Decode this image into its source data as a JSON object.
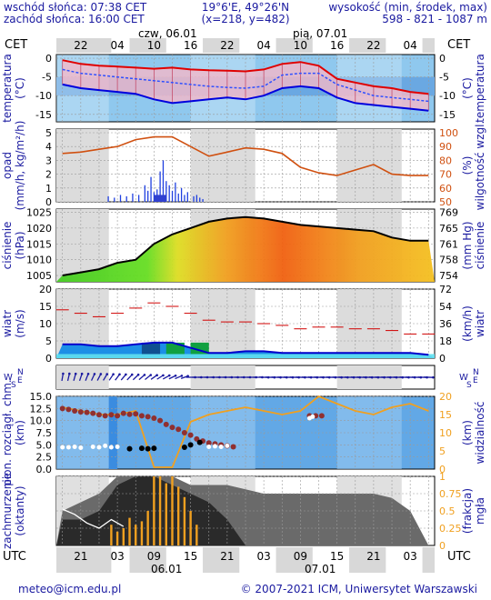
{
  "header": {
    "sunrise": "wschód słońca: 07:38 CET",
    "sunset": "zachód słońca: 16:00 CET",
    "coords": "19°6'E, 49°26'N",
    "grid": "(x=218,  y=482)",
    "altitude_label": "wysokość (min, środek, max)",
    "altitude_values": "598 - 821 - 1087 m"
  },
  "time_axis": {
    "tz_left": "CET",
    "tz_right": "CET",
    "day1": "czw, 06.01",
    "day2": "pią, 07.01",
    "top_hours": [
      "22",
      "04",
      "10",
      "16",
      "22",
      "04",
      "10",
      "16",
      "22",
      "04"
    ],
    "bottom_tz_left": "UTC",
    "bottom_tz_right": "UTC",
    "bottom_hours": [
      "21",
      "03",
      "09",
      "15",
      "21",
      "03",
      "09",
      "15",
      "21",
      "03"
    ],
    "bottom_day1": "06.01",
    "bottom_day2": "07.01"
  },
  "panels": {
    "temperature": {
      "left": "temperatura",
      "left2": "(°C)",
      "right": "(°C)",
      "right2": "temperatura",
      "ticks_left": [
        "0",
        "-5",
        "-10",
        "-15"
      ],
      "ticks_right": [
        "0",
        "-5",
        "-10",
        "-15"
      ]
    },
    "precip": {
      "left": "opad",
      "left2": "(mm/h, kg/m²/h)",
      "right": "(%)",
      "right2": "wilgotność wzgl.",
      "ticks_left": [
        "5",
        "4",
        "3",
        "2",
        "1",
        "0"
      ],
      "ticks_right": [
        "100",
        "90",
        "80",
        "70",
        "60",
        "50"
      ]
    },
    "pressure": {
      "left": "ciśnienie",
      "left2": "(hPa)",
      "right": "(mm Hg)",
      "right2": "ciśnienie",
      "ticks_left": [
        "1025",
        "1020",
        "1015",
        "1010",
        "1005"
      ],
      "ticks_right": [
        "769",
        "765",
        "761",
        "758",
        "754"
      ]
    },
    "wind": {
      "left": "wiatr",
      "left2": "(m/s)",
      "right": "(km/h)",
      "right2": "wiatr",
      "ticks_left": [
        "20",
        "15",
        "10",
        "5",
        "0"
      ],
      "ticks_right": [
        "72",
        "54",
        "36",
        "18",
        "0"
      ]
    },
    "winddir": {
      "left_letters": [
        "N",
        "W",
        "E",
        "S"
      ],
      "right_letters": [
        "N",
        "W",
        "E",
        "S"
      ]
    },
    "visibility": {
      "left": "pion. rozciągł. chm.",
      "left2": "(km)",
      "right": "(km)",
      "right2": "widzialność",
      "ticks_left": [
        "15.0",
        "12.5",
        "10.0",
        "7.5",
        "5.0",
        "2.5",
        "0.0"
      ],
      "ticks_right": [
        "20",
        "15",
        "10",
        "5",
        "0"
      ]
    },
    "clouds": {
      "left": "zachmurzenie",
      "left2": "(oktanty)",
      "right": "(frakcja)",
      "right2": "mgła",
      "ticks_right": [
        "1",
        "0.75",
        "0.5",
        "0.25",
        "0"
      ]
    }
  },
  "footer": {
    "email": "meteo@icm.edu.pl",
    "copyright": "© 2007-2021 ICM, Uniwersytet Warszawski"
  },
  "colors": {
    "temp_max": "#e00000",
    "temp_min": "#0000dd",
    "humidity": "#d05010",
    "precip": "#2040e0",
    "wind_max": "#d00000",
    "wind_avg": "#0000cc",
    "visibility": "#f0a020",
    "cloud_base": "#903030"
  },
  "chart_data": [
    {
      "type": "line",
      "panel": "temperature",
      "x_hours_cet": [
        19,
        22,
        25,
        28,
        31,
        34,
        37,
        40,
        43,
        46,
        49,
        52,
        55,
        58,
        61,
        64,
        67,
        70,
        73,
        76,
        79
      ],
      "series": [
        {
          "name": "max",
          "values": [
            -0.5,
            -1.5,
            -2.0,
            -2.2,
            -2.5,
            -2.8,
            -2.5,
            -3.0,
            -3.2,
            -3.3,
            -3.5,
            -3.0,
            -1.5,
            -1.0,
            -2.0,
            -5.5,
            -6.5,
            -7.5,
            -8.0,
            -9.0,
            -9.5
          ]
        },
        {
          "name": "mid",
          "values": [
            -3.0,
            -4.0,
            -4.5,
            -5.0,
            -5.5,
            -6.0,
            -6.5,
            -7.0,
            -7.5,
            -7.8,
            -8.0,
            -7.5,
            -4.5,
            -4.0,
            -4.0,
            -7.0,
            -8.5,
            -10.0,
            -10.5,
            -11.0,
            -11.5
          ]
        },
        {
          "name": "min",
          "values": [
            -7.0,
            -8.0,
            -8.5,
            -9.0,
            -9.5,
            -11.0,
            -12.0,
            -11.5,
            -11.0,
            -10.5,
            -11.0,
            -10.0,
            -8.0,
            -7.5,
            -8.0,
            -10.5,
            -12.0,
            -12.5,
            -13.0,
            -13.5,
            -14.0
          ]
        }
      ],
      "ylim": [
        -17,
        1
      ]
    },
    {
      "type": "line",
      "panel": "precip_humidity",
      "series": [
        {
          "name": "humidity",
          "x": [
            19,
            22,
            25,
            28,
            31,
            34,
            37,
            40,
            43,
            46,
            49,
            52,
            55,
            58,
            61,
            64,
            67,
            70,
            73,
            76,
            79
          ],
          "values": [
            85,
            86,
            88,
            90,
            95,
            97,
            97,
            90,
            83,
            86,
            89,
            88,
            85,
            75,
            71,
            69,
            73,
            77,
            70,
            69,
            69
          ]
        }
      ],
      "ylim_humidity": [
        50,
        100
      ],
      "ylim_precip": [
        0,
        5
      ]
    },
    {
      "type": "area",
      "panel": "pressure",
      "x_hours_cet": [
        19,
        22,
        25,
        28,
        31,
        34,
        37,
        40,
        43,
        46,
        49,
        52,
        55,
        58,
        61,
        64,
        67,
        70,
        73,
        76,
        79
      ],
      "values": [
        1005,
        1006,
        1007,
        1009,
        1010,
        1015,
        1018,
        1020,
        1022,
        1023,
        1023.5,
        1023,
        1022,
        1021,
        1020.5,
        1020,
        1019.5,
        1019,
        1017,
        1016,
        1016
      ],
      "ylim": [
        1003,
        1026
      ]
    },
    {
      "type": "line",
      "panel": "wind",
      "x_hours_cet": [
        19,
        22,
        25,
        28,
        31,
        34,
        37,
        40,
        43,
        46,
        49,
        52,
        55,
        58,
        61,
        64,
        67,
        70,
        73,
        76,
        79
      ],
      "series": [
        {
          "name": "gust",
          "values": [
            14,
            13,
            12,
            13,
            14.5,
            16,
            15,
            13,
            11,
            10.5,
            10.5,
            10,
            9.5,
            8.5,
            9,
            9,
            8.5,
            8.5,
            8,
            7,
            7
          ]
        },
        {
          "name": "mean",
          "values": [
            4,
            4,
            3.5,
            3.5,
            4,
            4.5,
            4.5,
            3,
            1.5,
            1.5,
            2,
            2,
            1.5,
            1.5,
            1.5,
            1.5,
            1.5,
            1.5,
            1.5,
            1.5,
            1
          ]
        }
      ],
      "ylim": [
        0,
        20
      ]
    },
    {
      "type": "line",
      "panel": "visibility",
      "series": [
        {
          "name": "visibility",
          "x": [
            19,
            22,
            25,
            28,
            31,
            34,
            37,
            40,
            43,
            46,
            49,
            52,
            55,
            58,
            61,
            64,
            67,
            70,
            73,
            76,
            79
          ],
          "values": [
            17,
            16,
            15,
            15,
            16,
            0.5,
            0.5,
            13,
            15,
            16,
            17,
            16,
            15,
            16,
            20,
            18,
            16,
            15,
            17,
            18,
            16
          ]
        }
      ],
      "ylim_km": [
        0,
        15
      ],
      "ylim_visibility": [
        0,
        20
      ]
    },
    {
      "type": "area",
      "panel": "clouds",
      "x_hours_cet": [
        19,
        22,
        25,
        28,
        31,
        34,
        37,
        40,
        43,
        46,
        49,
        52,
        55,
        58,
        61,
        64,
        67,
        70,
        73,
        76,
        79
      ],
      "series": [
        {
          "name": "total",
          "values": [
            4,
            5,
            6,
            8,
            8,
            8,
            8,
            7,
            7,
            7,
            6.5,
            6,
            6,
            6,
            6,
            6,
            6,
            6,
            5.5,
            4,
            0
          ]
        },
        {
          "name": "low",
          "values": [
            3,
            3,
            4,
            7,
            8,
            8,
            7,
            6,
            5,
            3,
            0,
            0,
            0,
            0,
            0,
            0,
            0,
            0,
            0,
            0,
            0
          ]
        }
      ],
      "ylim": [
        0,
        8
      ]
    }
  ]
}
